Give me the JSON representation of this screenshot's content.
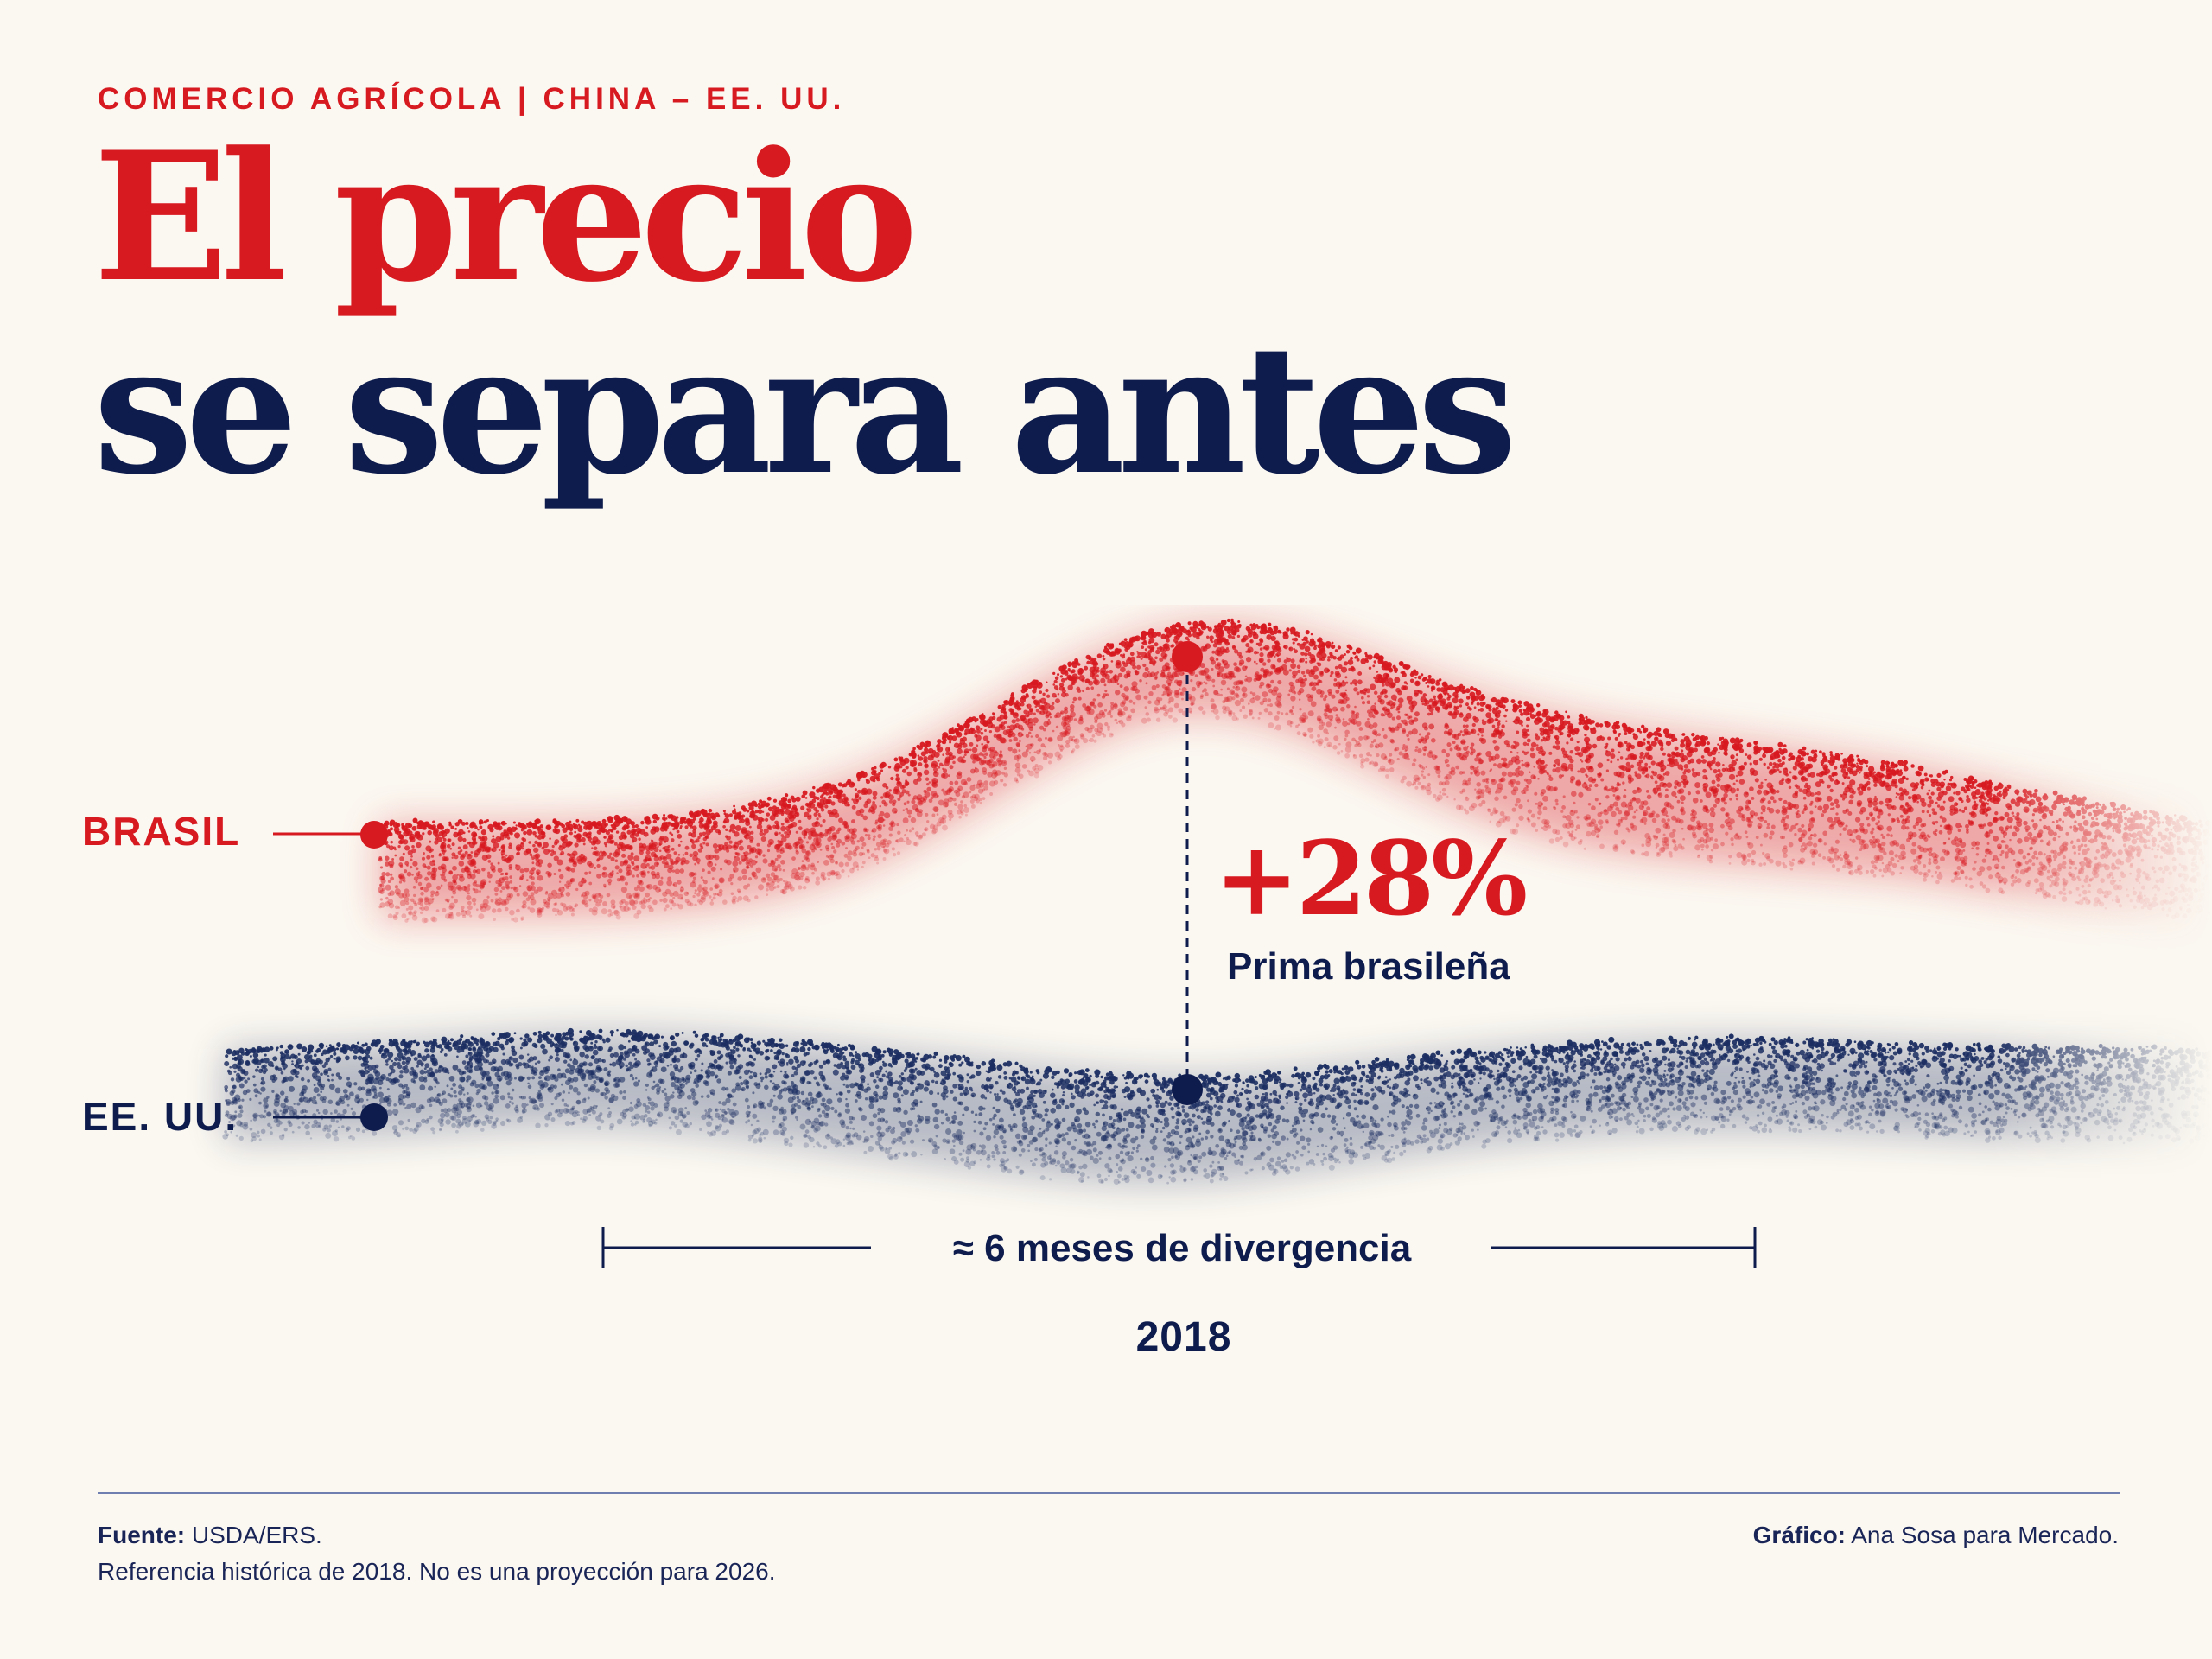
{
  "header": {
    "kicker": "COMERCIO AGRÍCOLA | CHINA – EE. UU.",
    "title_line1": "El precio",
    "title_line2": "se separa antes"
  },
  "colors": {
    "brasil": "#D71920",
    "eeuu": "#0D1B4D",
    "background": "#FBF8F1"
  },
  "chart_data": {
    "type": "area",
    "series": [
      {
        "name": "BRASIL",
        "color": "#D71920"
      },
      {
        "name": "EE. UU.",
        "color": "#0D1B4D"
      }
    ],
    "annotation": {
      "value": "+28%",
      "label": "Prima brasileña"
    },
    "span_label": "≈ 6 meses de divergencia",
    "year": "2018"
  },
  "footer": {
    "source_label": "Fuente:",
    "source_value": " USDA/ERS.",
    "note": "Referencia histórica de 2018. No es una proyección para 2026.",
    "credit_label": "Gráfico:",
    "credit_value": " Ana Sosa para Mercado."
  }
}
